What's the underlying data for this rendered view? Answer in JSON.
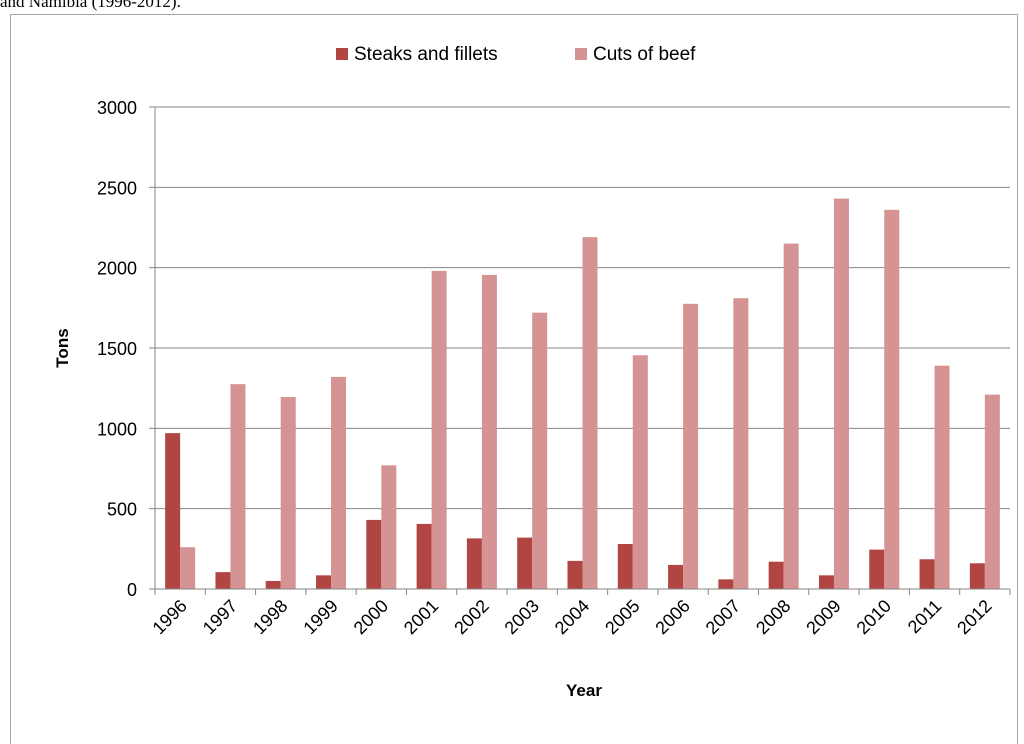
{
  "caption": "and Namibia (1996-2012).",
  "chart_data": {
    "type": "bar",
    "xlabel": "Year",
    "ylabel": "Tons",
    "ylim": [
      0,
      3000
    ],
    "yticks": [
      0,
      500,
      1000,
      1500,
      2000,
      2500,
      3000
    ],
    "grid": true,
    "legend_position": "top",
    "categories": [
      "1996",
      "1997",
      "1998",
      "1999",
      "2000",
      "2001",
      "2002",
      "2003",
      "2004",
      "2005",
      "2006",
      "2007",
      "2008",
      "2009",
      "2010",
      "2011",
      "2012"
    ],
    "series": [
      {
        "name": "Steaks and fillets",
        "color": "#b04542",
        "values": [
          970,
          105,
          50,
          85,
          430,
          405,
          315,
          320,
          175,
          280,
          150,
          60,
          170,
          85,
          245,
          185,
          160
        ]
      },
      {
        "name": "Cuts of beef",
        "color": "#d59493",
        "values": [
          260,
          1275,
          1195,
          1320,
          770,
          1980,
          1955,
          1720,
          2190,
          1455,
          1775,
          1810,
          2150,
          2430,
          2360,
          1390,
          1210
        ]
      }
    ]
  }
}
